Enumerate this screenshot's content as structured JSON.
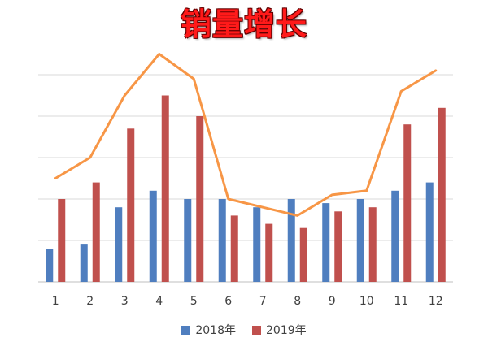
{
  "chart_data": {
    "type": "bar",
    "title": "销量增长",
    "categories": [
      "1",
      "2",
      "3",
      "4",
      "5",
      "6",
      "7",
      "8",
      "9",
      "10",
      "11",
      "12"
    ],
    "series": [
      {
        "name": "2018年",
        "type": "bar",
        "color": "#4f7ebf",
        "values": [
          0.8,
          0.9,
          1.8,
          2.2,
          2.0,
          2.0,
          1.8,
          2.0,
          1.9,
          2.0,
          2.2,
          2.4
        ]
      },
      {
        "name": "2019年",
        "type": "bar",
        "color": "#c0504d",
        "values": [
          2.0,
          2.4,
          3.7,
          4.5,
          4.0,
          1.6,
          1.4,
          1.3,
          1.7,
          1.8,
          3.8,
          4.2
        ]
      },
      {
        "type": "line",
        "color": "#f79646",
        "values": [
          2.5,
          3.0,
          4.5,
          5.5,
          4.9,
          2.0,
          1.8,
          1.6,
          2.1,
          2.2,
          4.6,
          5.1
        ]
      }
    ],
    "ylim": [
      0,
      6
    ],
    "y_gridlines": [
      0,
      1,
      2,
      3,
      4,
      5
    ],
    "grid": true,
    "legend_position": "bottom"
  }
}
